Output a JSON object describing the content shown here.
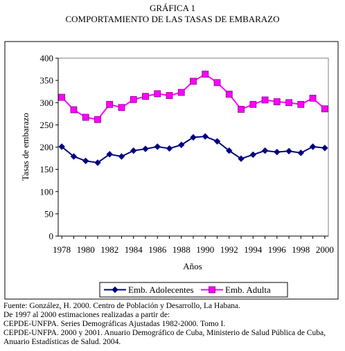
{
  "figure": {
    "heading": "GRÁFICA 1",
    "subheading": "COMPORTAMIENTO DE LAS TASAS DE EMBARAZO"
  },
  "chart_data": {
    "type": "line",
    "title": "",
    "xlabel": "Años",
    "ylabel": "Tasas de embarazo",
    "x": [
      1978,
      1979,
      1980,
      1981,
      1982,
      1983,
      1984,
      1985,
      1986,
      1987,
      1988,
      1989,
      1990,
      1991,
      1992,
      1993,
      1994,
      1995,
      1996,
      1997,
      1998,
      1999,
      2000
    ],
    "x_ticks": [
      1978,
      1980,
      1982,
      1984,
      1986,
      1988,
      1990,
      1992,
      1994,
      1996,
      1998,
      2000
    ],
    "ylim": [
      0,
      400
    ],
    "y_ticks": [
      0,
      50,
      100,
      150,
      200,
      250,
      300,
      350,
      400
    ],
    "grid": false,
    "legend_position": "bottom",
    "series": [
      {
        "name": "Emb. Adolecentes",
        "color": "#000080",
        "marker": "diamond",
        "values": [
          201,
          179,
          169,
          165,
          184,
          179,
          192,
          196,
          201,
          197,
          205,
          222,
          224,
          213,
          192,
          174,
          183,
          192,
          189,
          191,
          187,
          201,
          198
        ]
      },
      {
        "name": "Emb. Adulta",
        "color": "#FF00FF",
        "marker": "square",
        "values": [
          312,
          284,
          267,
          262,
          296,
          289,
          307,
          314,
          320,
          316,
          323,
          348,
          364,
          345,
          319,
          285,
          296,
          306,
          302,
          300,
          296,
          310,
          286
        ]
      }
    ]
  },
  "source": {
    "lines": [
      "Fuente: González, H. 2000. Centro de Población y Desarrollo, La Habana.",
      "De 1997 al 2000 estimaciones realizadas a partir de:",
      "CEPDE-UNFPA. Series Demográficas Ajustadas 1982-2000. Tomo I.",
      "CEPDE-UNFPA. 2000 y 2001. Anuario Demográfico de Cuba, Ministerio de Salud Pública de Cuba,",
      "Anuario Estadísticas de Salud. 2004."
    ]
  }
}
